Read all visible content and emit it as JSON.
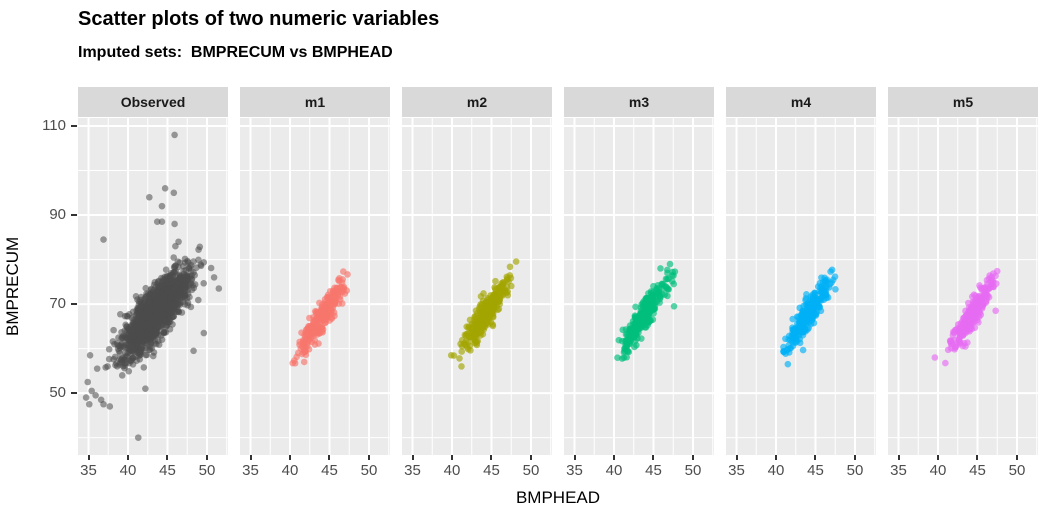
{
  "header": {
    "title": "Scatter plots of two numeric variables",
    "subtitle": "Imputed sets:  BMPRECUM vs BMPHEAD"
  },
  "chart_data": {
    "type": "scatter",
    "title": "Scatter plots of two numeric variables",
    "subtitle": "Imputed sets:  BMPRECUM vs BMPHEAD",
    "xlabel": "BMPHEAD",
    "ylabel": "BMPRECUM",
    "x_ticks": [
      35,
      40,
      45,
      50
    ],
    "y_ticks": [
      110,
      90,
      70,
      50
    ],
    "x_minor_gridlines": [
      37.5,
      42.5,
      47.5,
      52.5
    ],
    "y_minor_gridlines": [
      40,
      60,
      80,
      100
    ],
    "x_range": [
      33.67,
      52.66
    ],
    "y_range": [
      36.1,
      111.8
    ],
    "grid": true,
    "legend": "none",
    "panel_bg": "#EBEBEB",
    "grid_color": "#FFFFFF",
    "strip_bg": "#D9D9D9",
    "tick_color": "#333333",
    "tick_label_color": "#4D4D4D",
    "point_radius": 3.3,
    "facets": [
      {
        "label": "Observed",
        "color": "#4D4D4D",
        "alpha": 0.55,
        "n": 1500,
        "seed": 42,
        "center": [
          43.4,
          67.8
        ],
        "sd_x": 2.1,
        "slope": 1.8,
        "resid_sd": 2.9,
        "clip_x": [
          34.6,
          51.6
        ],
        "clip_y": [
          40,
          108
        ],
        "outliers": [
          [
            45.9,
            108
          ],
          [
            44.7,
            96
          ],
          [
            45.8,
            95
          ],
          [
            42.7,
            94
          ],
          [
            44.3,
            92
          ],
          [
            43.7,
            88.5
          ],
          [
            44.3,
            88.5
          ],
          [
            45.9,
            88
          ],
          [
            46.4,
            84
          ],
          [
            36.9,
            84.5
          ],
          [
            46.0,
            83
          ],
          [
            50.9,
            76
          ],
          [
            51.5,
            73.5
          ],
          [
            49.6,
            63.5
          ],
          [
            48.3,
            59.5
          ],
          [
            35.2,
            58.5
          ],
          [
            36.1,
            55.5
          ],
          [
            34.9,
            52.5
          ],
          [
            42.2,
            51
          ],
          [
            35.4,
            50.5
          ],
          [
            35.9,
            49.5
          ],
          [
            34.7,
            49
          ],
          [
            36.6,
            48.5
          ],
          [
            35.1,
            47.5
          ],
          [
            36.9,
            47.5
          ],
          [
            37.7,
            47
          ],
          [
            41.3,
            40
          ]
        ]
      },
      {
        "label": "m1",
        "color": "#F8766D",
        "alpha": 0.65,
        "n": 280,
        "seed": 101,
        "center": [
          44.2,
          67.6
        ],
        "sd_x": 1.45,
        "slope": 2.55,
        "resid_sd": 1.7,
        "clip_x": [
          40.2,
          48.2
        ],
        "clip_y": [
          56.5,
          79.5
        ],
        "outliers": [
          [
            41.8,
            57
          ]
        ]
      },
      {
        "label": "m2",
        "color": "#A3A500",
        "alpha": 0.65,
        "n": 280,
        "seed": 202,
        "center": [
          44.2,
          67.8
        ],
        "sd_x": 1.45,
        "slope": 2.5,
        "resid_sd": 1.7,
        "clip_x": [
          40.2,
          48.2
        ],
        "clip_y": [
          56.5,
          80.5
        ],
        "outliers": [
          [
            39.9,
            58.5
          ],
          [
            41.2,
            56
          ]
        ]
      },
      {
        "label": "m3",
        "color": "#00BF7D",
        "alpha": 0.65,
        "n": 280,
        "seed": 303,
        "center": [
          44.0,
          67.8
        ],
        "sd_x": 1.5,
        "slope": 2.55,
        "resid_sd": 1.6,
        "clip_x": [
          40.0,
          48.0
        ],
        "clip_y": [
          57.5,
          79.5
        ],
        "outliers": [
          [
            47.6,
            69.5
          ]
        ]
      },
      {
        "label": "m4",
        "color": "#00B0F6",
        "alpha": 0.65,
        "n": 280,
        "seed": 404,
        "center": [
          44.1,
          67.8
        ],
        "sd_x": 1.45,
        "slope": 2.55,
        "resid_sd": 1.7,
        "clip_x": [
          40.2,
          48.2
        ],
        "clip_y": [
          57.0,
          79.0
        ],
        "outliers": [
          [
            41.5,
            56.5
          ]
        ]
      },
      {
        "label": "m5",
        "color": "#E76BF3",
        "alpha": 0.65,
        "n": 280,
        "seed": 505,
        "center": [
          44.3,
          67.6
        ],
        "sd_x": 1.4,
        "slope": 2.6,
        "resid_sd": 1.6,
        "clip_x": [
          40.3,
          48.3
        ],
        "clip_y": [
          56.5,
          79.5
        ],
        "outliers": [
          [
            39.6,
            58
          ],
          [
            47.3,
            68.5
          ]
        ]
      }
    ]
  }
}
